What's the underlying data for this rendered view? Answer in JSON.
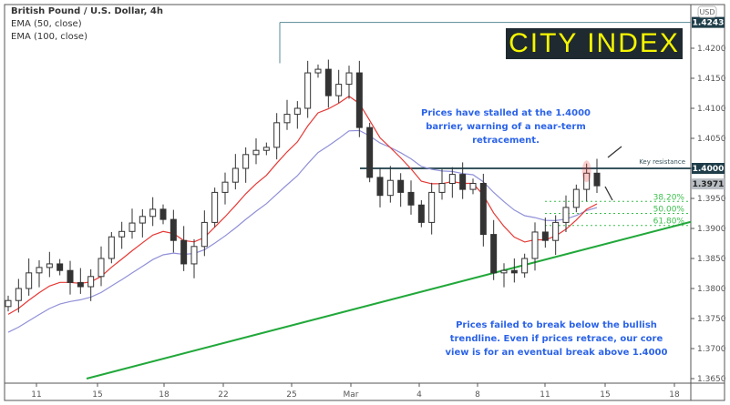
{
  "legend": {
    "title": "British Pound / U.S. Dollar, 4h",
    "ema1": "EMA (50, close)",
    "ema2": "EMA (100, close)"
  },
  "logo": "CITY INDEX",
  "notes": {
    "top": "Prices have stalled at the 1.4000 barrier, warning of a near-term retracement.",
    "bottom": "Prices failed to break below the bullish trendline. Even if prices retrace, our core view is for an eventual break above 1.4000"
  },
  "chart_data": {
    "type": "candlestick",
    "currency": "USD",
    "ylim": [
      1.3645,
      1.427
    ],
    "yticks": [
      1.365,
      1.37,
      1.375,
      1.38,
      1.385,
      1.39,
      1.395,
      1.4,
      1.405,
      1.41,
      1.415,
      1.42
    ],
    "xticks": [
      "11",
      "15",
      "18",
      "22",
      "25",
      "Mar",
      "4",
      "8",
      "11",
      "15",
      "18"
    ],
    "closes": [
      1.378,
      1.38,
      1.3826,
      1.3835,
      1.3841,
      1.383,
      1.381,
      1.3803,
      1.382,
      1.385,
      1.3886,
      1.3895,
      1.3909,
      1.392,
      1.3932,
      1.3915,
      1.388,
      1.3841,
      1.387,
      1.391,
      1.396,
      1.3977,
      1.4,
      1.4023,
      1.403,
      1.4035,
      1.4076,
      1.409,
      1.41,
      1.4159,
      1.4165,
      1.4121,
      1.414,
      1.4159,
      1.4068,
      1.3985,
      1.3955,
      1.398,
      1.396,
      1.3939,
      1.391,
      1.396,
      1.3975,
      1.399,
      1.3965,
      1.3975,
      1.389,
      1.3826,
      1.383,
      1.3826,
      1.385,
      1.3894,
      1.388,
      1.391,
      1.3935,
      1.3965,
      1.3992,
      1.3971
    ],
    "last_price": "1.3971",
    "high_label": "1.4243",
    "resistance_label": "1.4000",
    "resistance_text": "Key resistance",
    "fib": [
      {
        "label": "38.20%",
        "value": 1.3945
      },
      {
        "label": "50.00%",
        "value": 1.3925
      },
      {
        "label": "61.80%",
        "value": 1.3905
      }
    ],
    "trendline": {
      "from": 1.365,
      "to": 1.3911
    },
    "colors": {
      "up": "#ffffff",
      "down": "#333333",
      "ema50": "#e53935",
      "ema100": "#9090d8",
      "trend": "#21a83a",
      "fib": "#3cbf4e",
      "axis_badge": "#1e3d49",
      "note": "#2b63e8"
    }
  }
}
